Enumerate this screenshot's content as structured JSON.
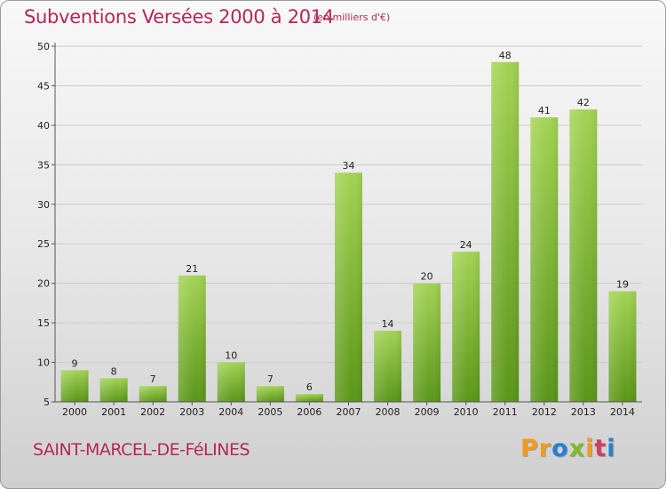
{
  "header": {
    "title": "Subventions Versées 2000 à 2014",
    "subtitle": "(en milliers d'€)"
  },
  "footer": {
    "commune": "SAINT-MARCEL-DE-FéLINES",
    "logo": {
      "letters": [
        "P",
        "r",
        "o",
        "x",
        "i",
        "t",
        "i"
      ]
    }
  },
  "colors": {
    "title": "#b5275a",
    "bar_light": "#a3d354",
    "bar_dark": "#5a9618",
    "axis": "#555555",
    "grid": "#cccccc",
    "logo": [
      "#f39a1d",
      "#f39a1d",
      "#2a7fd0",
      "#7dbb2a",
      "#f39a1d",
      "#d23b6b",
      "#2a7fd0"
    ]
  },
  "chart_data": {
    "type": "bar",
    "title": "Subventions Versées 2000 à 2014",
    "subtitle": "(en milliers d'€)",
    "categories": [
      "2000",
      "2001",
      "2002",
      "2003",
      "2004",
      "2005",
      "2006",
      "2007",
      "2008",
      "2009",
      "2010",
      "2011",
      "2012",
      "2013",
      "2014"
    ],
    "values": [
      9,
      8,
      7,
      21,
      10,
      7,
      6,
      34,
      14,
      20,
      24,
      48,
      41,
      42,
      19
    ],
    "ylim": [
      5,
      50
    ],
    "yticks": [
      5,
      10,
      15,
      20,
      25,
      30,
      35,
      40,
      45,
      50
    ],
    "grid": true
  }
}
